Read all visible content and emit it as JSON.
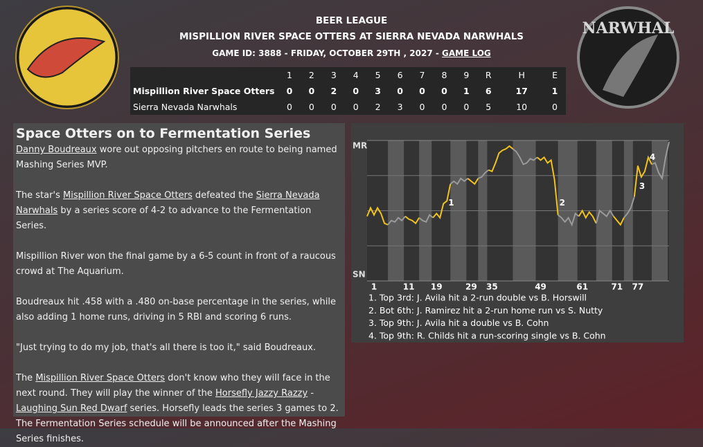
{
  "header": {
    "league": "BEER LEAGUE",
    "matchup": "MISPILLION RIVER SPACE OTTERS AT SIERRA NEVADA NARWHALS",
    "game_info": "GAME ID: 3888 - FRIDAY, OCTOBER 29TH , 2027 -",
    "game_log_link": "GAME LOG",
    "home_logo_text": "NARWHAL"
  },
  "box_score": {
    "columns": [
      "1",
      "2",
      "3",
      "4",
      "5",
      "6",
      "7",
      "8",
      "9",
      "R",
      "H",
      "E"
    ],
    "rows": [
      [
        "Mispillion River Space Otters",
        0,
        0,
        2,
        0,
        3,
        0,
        0,
        0,
        1,
        6,
        17,
        1
      ],
      [
        "Sierra Nevada Narwhals",
        0,
        0,
        0,
        0,
        2,
        3,
        0,
        0,
        0,
        5,
        10,
        0
      ]
    ]
  },
  "article": {
    "title": "Space Otters on to Fermentation Series",
    "paragraphs": [
      [
        {
          "text": "Danny Boudreaux",
          "link": true
        },
        {
          "text": " wore out opposing pitchers en route to being named Mashing Series MVP."
        }
      ],
      [
        {
          "text": "The star's "
        },
        {
          "text": "Mispillion River Space Otters",
          "link": true
        },
        {
          "text": " defeated the "
        },
        {
          "text": "Sierra Nevada Narwhals",
          "link": true
        },
        {
          "text": " by a series score of 4-2 to advance to the Fermentation Series."
        }
      ],
      [
        {
          "text": "Mispillion River won the final game by a 6-5 count in front of a raucous crowd at The Aquarium."
        }
      ],
      [
        {
          "text": "Boudreaux hit .458 with a .480 on-base percentage in the series, while also adding 1 home runs, driving in 5 RBI and scoring 6 runs."
        }
      ],
      [
        {
          "text": "\"Just trying to do my job, that's all there is too it,\" said Boudreaux."
        }
      ],
      [
        {
          "text": "The "
        },
        {
          "text": "Mispillion River Space Otters",
          "link": true
        },
        {
          "text": " don't know who they will face in the next round. They will play the winner of the "
        },
        {
          "text": "Horsefly Jazzy Razzy",
          "link": true
        },
        {
          "text": " - "
        },
        {
          "text": "Laughing Sun Red Dwarf",
          "link": true
        },
        {
          "text": " series. Horsefly leads the series 3 games to 2. The Fermentation Series schedule will be announced after the Mashing Series finishes."
        }
      ]
    ]
  },
  "chart_data": {
    "type": "line",
    "x": [
      0,
      1,
      2,
      3,
      4,
      5,
      6,
      7,
      8,
      9,
      10,
      11,
      12,
      13,
      14,
      15,
      16,
      17,
      18,
      19,
      20,
      21,
      22,
      23,
      24,
      25,
      26,
      27,
      28,
      29,
      30,
      31,
      32,
      33,
      34,
      35,
      36,
      37,
      38,
      39,
      40,
      41,
      42,
      43,
      44,
      45,
      46,
      47,
      48,
      49,
      50,
      51,
      52,
      53,
      54,
      55,
      56,
      57,
      58,
      59,
      60,
      61,
      62,
      63,
      64,
      65,
      66,
      67,
      68,
      69,
      70,
      71,
      72,
      73,
      74,
      75,
      76,
      77,
      78,
      79,
      80,
      81,
      82,
      83,
      84,
      85,
      86,
      87
    ],
    "series": [
      {
        "color": "#f2c31b",
        "alt_color": "#9a9a9a",
        "values": [
          46,
          52,
          47,
          52,
          48,
          41,
          40,
          43,
          42,
          45,
          43,
          46,
          44,
          43,
          41,
          45,
          43,
          42,
          47,
          45,
          48,
          45,
          55,
          57,
          69,
          71,
          69,
          73,
          71,
          73,
          71,
          69,
          73,
          74,
          77,
          79,
          78,
          84,
          91,
          93,
          94,
          96,
          94,
          92,
          88,
          83,
          84,
          87,
          86,
          88,
          86,
          88,
          84,
          86,
          72,
          47,
          45,
          42,
          45,
          40,
          48,
          46,
          50,
          45,
          49,
          46,
          41,
          50,
          48,
          46,
          50,
          46,
          43,
          40,
          45,
          48,
          52,
          60,
          82,
          74,
          78,
          88,
          83,
          84,
          77,
          73,
          88,
          99
        ]
      }
    ],
    "xlim": [
      0,
      87
    ],
    "xticks": [
      1,
      11,
      19,
      29,
      35,
      49,
      61,
      71,
      77
    ],
    "ylim": [
      0,
      100
    ],
    "yticks": [
      {
        "value": 0,
        "label": "SN"
      },
      {
        "value": 100,
        "label": "MR"
      }
    ],
    "grid_lines": [
      25,
      50,
      75
    ],
    "event_markers": [
      {
        "label": "1",
        "x": 23
      },
      {
        "label": "2",
        "x": 55
      },
      {
        "label": "3",
        "x": 78
      },
      {
        "label": "4",
        "x": 81
      }
    ],
    "annotations": [
      "1. Top 3rd: J. Avila hit a 2-run double vs B. Horswill",
      "2. Bot 6th: J. Ramirez hit a 2-run home run vs S. Nutty",
      "3. Top 9th: J. Avila hit a double vs B. Cohn",
      "4. Top 9th: R. Childs hit a run-scoring single vs B. Cohn"
    ]
  }
}
